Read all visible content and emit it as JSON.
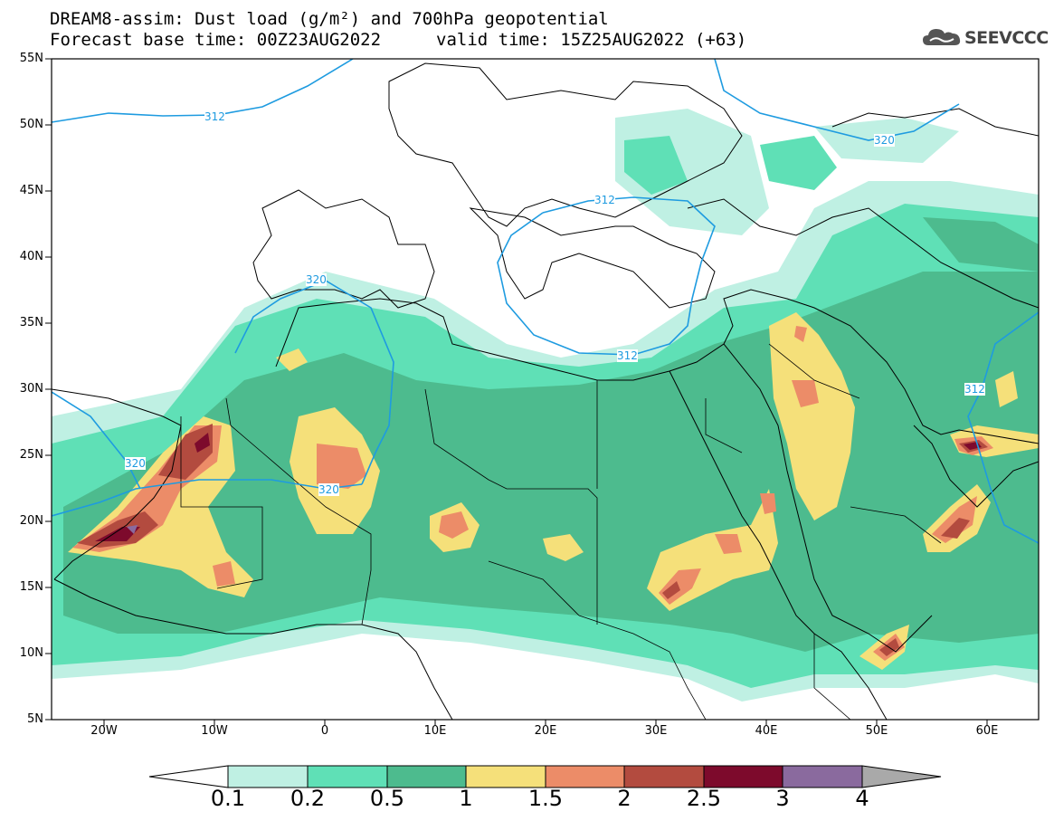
{
  "header": {
    "title": "DREAM8-assim: Dust load (g/m²) and 700hPa geopotential",
    "base_time": "Forecast base time: 00Z23AUG2022",
    "valid_time": "valid time: 15Z25AUG2022 (+63)",
    "logo_text": "SEEVCCC",
    "logo_icon": "cloud-logo-icon"
  },
  "axes": {
    "lat_labels": [
      "55N",
      "50N",
      "45N",
      "40N",
      "35N",
      "30N",
      "25N",
      "20N",
      "15N",
      "10N",
      "5N"
    ],
    "lon_labels": [
      "20W",
      "10W",
      "0",
      "10E",
      "20E",
      "30E",
      "40E",
      "50E",
      "60E"
    ]
  },
  "colorbar": {
    "labels": [
      "0.1",
      "0.2",
      "0.5",
      "1",
      "1.5",
      "2",
      "2.5",
      "3",
      "4"
    ],
    "colors": [
      "#ffffff",
      "#bff0e3",
      "#5fe0b6",
      "#4dbb8e",
      "#f5e07a",
      "#ec8c68",
      "#b34b3f",
      "#7d0a2c",
      "#8a6a9e",
      "#a9a9a9"
    ]
  },
  "contours": {
    "color": "#1e9be0",
    "labels": [
      "312",
      "320",
      "312",
      "320",
      "320",
      "312",
      "312",
      "320"
    ]
  }
}
